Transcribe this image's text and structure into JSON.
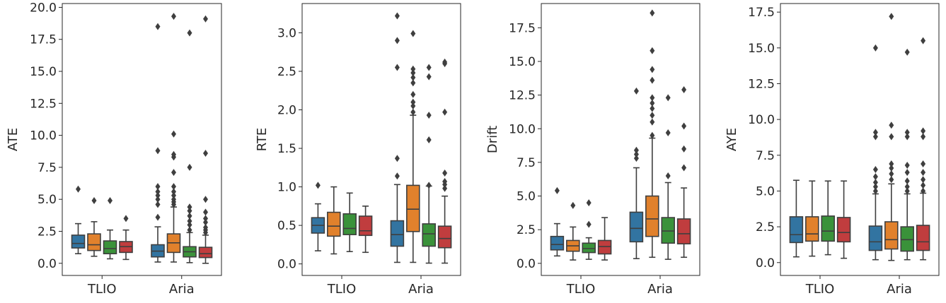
{
  "palette": [
    "#3274a1",
    "#e1812c",
    "#3a923a",
    "#c03d3e"
  ],
  "chart_data": [
    {
      "type": "boxplot",
      "ylabel": "ATE",
      "categories": [
        "TLIO",
        "Aria"
      ],
      "ylim": [
        -0.95,
        20.3
      ],
      "yticks": [
        0.0,
        2.5,
        5.0,
        7.5,
        10.0,
        12.5,
        15.0,
        17.5,
        20.0
      ],
      "yticklabels": [
        "0.0",
        "2.5",
        "5.0",
        "7.5",
        "10.0",
        "12.5",
        "15.0",
        "17.5",
        "20.0"
      ],
      "groups": [
        {
          "category": "TLIO",
          "boxes": [
            {
              "q1": 1.2,
              "median": 1.55,
              "q3": 2.2,
              "whisker_low": 0.75,
              "whisker_high": 3.1,
              "outliers": [
                5.8
              ]
            },
            {
              "q1": 1.0,
              "median": 1.45,
              "q3": 2.3,
              "whisker_low": 0.55,
              "whisker_high": 3.25,
              "outliers": [
                4.9
              ]
            },
            {
              "q1": 0.75,
              "median": 1.15,
              "q3": 1.75,
              "whisker_low": 0.35,
              "whisker_high": 2.6,
              "outliers": [
                4.9
              ]
            },
            {
              "q1": 0.85,
              "median": 1.3,
              "q3": 1.7,
              "whisker_low": 0.3,
              "whisker_high": 2.6,
              "outliers": [
                3.5
              ]
            }
          ]
        },
        {
          "category": "Aria",
          "boxes": [
            {
              "q1": 0.5,
              "median": 0.95,
              "q3": 1.45,
              "whisker_low": 0.1,
              "whisker_high": 2.85,
              "outliers": [
                3.6,
                4.6,
                5.0,
                5.3,
                5.6,
                6.0,
                8.8,
                18.5
              ]
            },
            {
              "q1": 0.85,
              "median": 1.6,
              "q3": 2.3,
              "whisker_low": 0.1,
              "whisker_high": 4.4,
              "outliers": [
                4.6,
                4.8,
                5.0,
                5.3,
                5.6,
                6.0,
                7.1,
                8.3,
                8.5,
                10.1,
                19.3
              ]
            },
            {
              "q1": 0.5,
              "median": 0.9,
              "q3": 1.3,
              "whisker_low": 0.05,
              "whisker_high": 2.4,
              "outliers": [
                2.6,
                3.0,
                3.3,
                3.7,
                4.1,
                4.4,
                7.5,
                18.0
              ]
            },
            {
              "q1": 0.45,
              "median": 0.75,
              "q3": 1.25,
              "whisker_low": 0.0,
              "whisker_high": 2.2,
              "outliers": [
                2.4,
                2.6,
                2.8,
                3.2,
                3.5,
                4.0,
                5.0,
                8.6,
                19.1
              ]
            }
          ]
        }
      ]
    },
    {
      "type": "boxplot",
      "ylabel": "RTE",
      "categories": [
        "TLIO",
        "Aria"
      ],
      "ylim": [
        -0.15,
        3.38
      ],
      "yticks": [
        0.0,
        0.5,
        1.0,
        1.5,
        2.0,
        2.5,
        3.0
      ],
      "yticklabels": [
        "0.0",
        "0.5",
        "1.0",
        "1.5",
        "2.0",
        "2.5",
        "3.0"
      ],
      "groups": [
        {
          "category": "TLIO",
          "boxes": [
            {
              "q1": 0.4,
              "median": 0.5,
              "q3": 0.6,
              "whisker_low": 0.17,
              "whisker_high": 0.78,
              "outliers": [
                1.02
              ]
            },
            {
              "q1": 0.36,
              "median": 0.49,
              "q3": 0.67,
              "whisker_low": 0.13,
              "whisker_high": 1.0,
              "outliers": []
            },
            {
              "q1": 0.38,
              "median": 0.46,
              "q3": 0.65,
              "whisker_low": 0.16,
              "whisker_high": 0.92,
              "outliers": []
            },
            {
              "q1": 0.37,
              "median": 0.43,
              "q3": 0.62,
              "whisker_low": 0.15,
              "whisker_high": 0.75,
              "outliers": []
            }
          ]
        },
        {
          "category": "Aria",
          "boxes": [
            {
              "q1": 0.23,
              "median": 0.38,
              "q3": 0.56,
              "whisker_low": 0.02,
              "whisker_high": 1.03,
              "outliers": [
                1.14,
                1.37,
                2.55,
                2.9,
                3.22
              ]
            },
            {
              "q1": 0.42,
              "median": 0.71,
              "q3": 1.02,
              "whisker_low": 0.02,
              "whisker_high": 1.93,
              "outliers": [
                1.97,
                2.05,
                2.1,
                2.2,
                2.35,
                2.42,
                2.48,
                2.53,
                2.99
              ]
            },
            {
              "q1": 0.23,
              "median": 0.39,
              "q3": 0.52,
              "whisker_low": 0.01,
              "whisker_high": 1.01,
              "outliers": [
                1.02,
                1.61,
                1.93,
                2.43,
                2.55
              ]
            },
            {
              "q1": 0.21,
              "median": 0.33,
              "q3": 0.49,
              "whisker_low": 0.01,
              "whisker_high": 0.88,
              "outliers": [
                0.98,
                1.03,
                1.07,
                1.18,
                1.97,
                2.6,
                2.62
              ]
            }
          ]
        }
      ]
    },
    {
      "type": "boxplot",
      "ylabel": "Drift",
      "categories": [
        "TLIO",
        "Aria"
      ],
      "ylim": [
        -0.9,
        19.3
      ],
      "yticks": [
        0.0,
        2.5,
        5.0,
        7.5,
        10.0,
        12.5,
        15.0,
        17.5
      ],
      "yticklabels": [
        "0.0",
        "2.5",
        "5.0",
        "7.5",
        "10.0",
        "12.5",
        "15.0",
        "17.5"
      ],
      "groups": [
        {
          "category": "TLIO",
          "boxes": [
            {
              "q1": 1.0,
              "median": 1.4,
              "q3": 2.0,
              "whisker_low": 0.55,
              "whisker_high": 2.95,
              "outliers": [
                5.4
              ]
            },
            {
              "q1": 0.9,
              "median": 1.3,
              "q3": 1.7,
              "whisker_low": 0.25,
              "whisker_high": 2.7,
              "outliers": [
                4.3
              ]
            },
            {
              "q1": 0.8,
              "median": 1.1,
              "q3": 1.5,
              "whisker_low": 0.3,
              "whisker_high": 1.9,
              "outliers": [
                2.9,
                4.5
              ]
            },
            {
              "q1": 0.7,
              "median": 1.25,
              "q3": 1.7,
              "whisker_low": 0.25,
              "whisker_high": 3.4,
              "outliers": []
            }
          ]
        },
        {
          "category": "Aria",
          "boxes": [
            {
              "q1": 1.6,
              "median": 2.6,
              "q3": 3.8,
              "whisker_low": 0.35,
              "whisker_high": 7.1,
              "outliers": [
                7.8,
                8.1,
                8.4,
                12.8
              ]
            },
            {
              "q1": 2.0,
              "median": 3.3,
              "q3": 5.0,
              "whisker_low": 0.45,
              "whisker_high": 9.3,
              "outliers": [
                9.5,
                10.5,
                11.0,
                11.5,
                11.9,
                12.3,
                13.6,
                14.4,
                15.8,
                18.6
              ]
            },
            {
              "q1": 1.5,
              "median": 2.4,
              "q3": 3.4,
              "whisker_low": 0.3,
              "whisker_high": 6.0,
              "outliers": [
                6.5,
                9.7,
                12.3
              ]
            },
            {
              "q1": 1.45,
              "median": 2.2,
              "q3": 3.3,
              "whisker_low": 0.45,
              "whisker_high": 5.6,
              "outliers": [
                7.1,
                8.5,
                10.2,
                12.9
              ]
            }
          ]
        }
      ]
    },
    {
      "type": "boxplot",
      "ylabel": "AYE",
      "categories": [
        "TLIO",
        "Aria"
      ],
      "ylim": [
        -0.9,
        18.1
      ],
      "yticks": [
        0.0,
        2.5,
        5.0,
        7.5,
        10.0,
        12.5,
        15.0,
        17.5
      ],
      "yticklabels": [
        "0.0",
        "2.5",
        "5.0",
        "7.5",
        "10.0",
        "12.5",
        "15.0",
        "17.5"
      ],
      "groups": [
        {
          "category": "TLIO",
          "boxes": [
            {
              "q1": 1.4,
              "median": 1.95,
              "q3": 3.2,
              "whisker_low": 0.4,
              "whisker_high": 5.75,
              "outliers": []
            },
            {
              "q1": 1.5,
              "median": 2.0,
              "q3": 3.2,
              "whisker_low": 0.45,
              "whisker_high": 5.7,
              "outliers": []
            },
            {
              "q1": 1.5,
              "median": 2.2,
              "q3": 3.25,
              "whisker_low": 0.55,
              "whisker_high": 5.7,
              "outliers": []
            },
            {
              "q1": 1.45,
              "median": 2.1,
              "q3": 3.15,
              "whisker_low": 0.3,
              "whisker_high": 5.7,
              "outliers": []
            }
          ]
        },
        {
          "category": "Aria",
          "boxes": [
            {
              "q1": 0.85,
              "median": 1.45,
              "q3": 2.55,
              "whisker_low": 0.2,
              "whisker_high": 4.8,
              "outliers": [
                5.0,
                5.3,
                5.6,
                6.0,
                6.5,
                8.8,
                9.1,
                15.0
              ]
            },
            {
              "q1": 0.95,
              "median": 1.6,
              "q3": 2.85,
              "whisker_low": 0.15,
              "whisker_high": 5.5,
              "outliers": [
                5.8,
                6.2,
                6.6,
                6.9,
                8.8,
                9.6,
                17.2
              ]
            },
            {
              "q1": 0.8,
              "median": 1.6,
              "q3": 2.5,
              "whisker_low": 0.2,
              "whisker_high": 4.8,
              "outliers": [
                5.0,
                5.3,
                5.7,
                6.3,
                6.8,
                8.8,
                9.1,
                14.7
              ]
            },
            {
              "q1": 0.85,
              "median": 1.45,
              "q3": 2.6,
              "whisker_low": 0.2,
              "whisker_high": 4.85,
              "outliers": [
                5.0,
                5.4,
                5.8,
                6.3,
                6.9,
                8.8,
                9.2,
                15.5
              ]
            }
          ]
        }
      ]
    }
  ]
}
